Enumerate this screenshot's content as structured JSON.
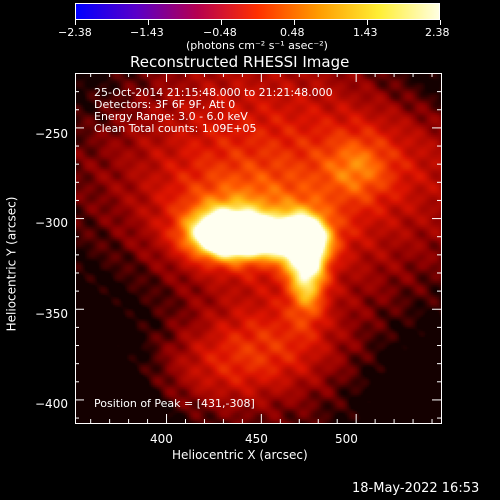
{
  "colorbar": {
    "tick_labels": [
      "−2.38",
      "−1.43",
      "−0.48",
      "0.48",
      "1.43",
      "2.38"
    ],
    "units_label": "(photons cm⁻² s⁻¹ asec⁻²)",
    "stops": [
      "#0000ff",
      "#5a00c8",
      "#b40050",
      "#ff3000",
      "#ff9b00",
      "#ffee33",
      "#ffffe0"
    ]
  },
  "image": {
    "title": "Reconstructed RHESSI Image",
    "info_lines": [
      "25-Oct-2014 21:15:48.000 to 21:21:48.000",
      "Detectors: 3F 6F 9F, Att 0",
      "Energy Range: 3.0 - 6.0 keV",
      "Clean     Total counts: 1.09E+05"
    ],
    "peak_label": "Position of Peak = [431,-308]",
    "peak_position": [
      431,
      -308
    ]
  },
  "axes": {
    "xlabel": "Heliocentric X (arcsec)",
    "ylabel": "Heliocentric Y (arcsec)",
    "xlim": [
      352,
      545
    ],
    "ylim": [
      -413,
      -220
    ],
    "x_ticks": [
      400,
      450,
      500
    ],
    "y_ticks": [
      -250,
      -300,
      -350,
      -400
    ],
    "x_tick_labels": [
      "400",
      "450",
      "500"
    ],
    "y_tick_labels": [
      "−250",
      "−300",
      "−350",
      "−400"
    ]
  },
  "footer": {
    "timestamp": "18-May-2022 16:53"
  }
}
